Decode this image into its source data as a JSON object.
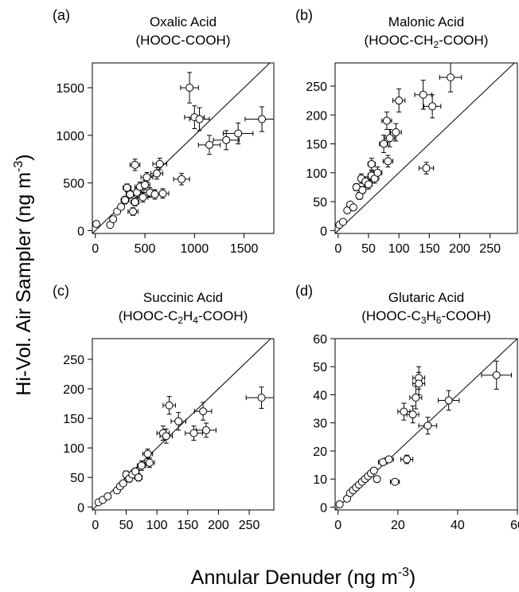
{
  "figure": {
    "ylabel": "Hi-Vol. Air Sampler (ng m",
    "ylabel_sup": "-3",
    "ylabel_close": ")",
    "xlabel": "Annular Denuder (ng m",
    "xlabel_sup": "-3",
    "xlabel_close": ")"
  },
  "chart_data": [
    {
      "type": "scatter",
      "panel_label": "(a)",
      "title_line1": "Oxalic Acid",
      "title_line2": [
        {
          "t": "(HOOC-COOH)"
        }
      ],
      "xlim": [
        -30,
        1800
      ],
      "ylim": [
        -30,
        1760
      ],
      "xticks": [
        0,
        500,
        1000,
        1500
      ],
      "yticks": [
        0,
        500,
        1000,
        1500
      ],
      "one_to_one_line": true,
      "points": [
        {
          "x": 10,
          "y": 70
        },
        {
          "x": 150,
          "y": 60
        },
        {
          "x": 180,
          "y": 120
        },
        {
          "x": 220,
          "y": 200
        },
        {
          "x": 260,
          "y": 250
        },
        {
          "x": 300,
          "y": 320
        },
        {
          "x": 320,
          "y": 450
        },
        {
          "x": 350,
          "y": 380
        },
        {
          "x": 380,
          "y": 200
        },
        {
          "x": 400,
          "y": 300
        },
        {
          "x": 420,
          "y": 400
        },
        {
          "x": 450,
          "y": 460
        },
        {
          "x": 480,
          "y": 350
        },
        {
          "x": 500,
          "y": 480
        },
        {
          "x": 520,
          "y": 560
        },
        {
          "x": 550,
          "y": 400
        },
        {
          "x": 600,
          "y": 380
        },
        {
          "x": 620,
          "y": 600
        },
        {
          "x": 650,
          "y": 700
        },
        {
          "x": 680,
          "y": 390
        },
        {
          "x": 400,
          "y": 690
        },
        {
          "x": 870,
          "y": 540
        },
        {
          "x": 950,
          "y": 1500
        },
        {
          "x": 1000,
          "y": 1190
        },
        {
          "x": 1050,
          "y": 1170
        },
        {
          "x": 1150,
          "y": 900
        },
        {
          "x": 1320,
          "y": 950
        },
        {
          "x": 1440,
          "y": 1020
        },
        {
          "x": 1680,
          "y": 1170
        }
      ],
      "x_errors": [
        0,
        0,
        0,
        0,
        0,
        40,
        40,
        40,
        50,
        40,
        50,
        50,
        50,
        50,
        60,
        60,
        60,
        60,
        70,
        60,
        50,
        80,
        90,
        100,
        100,
        110,
        130,
        150,
        170
      ],
      "y_errors": [
        0,
        0,
        0,
        0,
        0,
        40,
        40,
        40,
        40,
        40,
        50,
        50,
        50,
        50,
        50,
        50,
        50,
        60,
        60,
        50,
        60,
        60,
        160,
        120,
        120,
        100,
        100,
        110,
        130
      ]
    },
    {
      "type": "scatter",
      "panel_label": "(b)",
      "title_line1": "Malonic Acid",
      "title_line2": [
        {
          "t": "(HOOC-CH"
        },
        {
          "t": "2",
          "sub": true
        },
        {
          "t": "-COOH)"
        }
      ],
      "xlim": [
        -5,
        295
      ],
      "ylim": [
        -5,
        290
      ],
      "xticks": [
        0,
        50,
        100,
        150,
        200,
        250
      ],
      "yticks": [
        0,
        50,
        100,
        150,
        200,
        250
      ],
      "one_to_one_line": true,
      "points": [
        {
          "x": 2,
          "y": 10
        },
        {
          "x": 8,
          "y": 15
        },
        {
          "x": 15,
          "y": 35
        },
        {
          "x": 20,
          "y": 45
        },
        {
          "x": 25,
          "y": 40
        },
        {
          "x": 30,
          "y": 75
        },
        {
          "x": 35,
          "y": 60
        },
        {
          "x": 38,
          "y": 90
        },
        {
          "x": 40,
          "y": 70
        },
        {
          "x": 45,
          "y": 85
        },
        {
          "x": 50,
          "y": 80
        },
        {
          "x": 55,
          "y": 115
        },
        {
          "x": 55,
          "y": 95
        },
        {
          "x": 60,
          "y": 90
        },
        {
          "x": 65,
          "y": 100
        },
        {
          "x": 75,
          "y": 150
        },
        {
          "x": 80,
          "y": 190
        },
        {
          "x": 82,
          "y": 120
        },
        {
          "x": 85,
          "y": 160
        },
        {
          "x": 95,
          "y": 170
        },
        {
          "x": 100,
          "y": 225
        },
        {
          "x": 140,
          "y": 235
        },
        {
          "x": 145,
          "y": 108
        },
        {
          "x": 155,
          "y": 215
        },
        {
          "x": 185,
          "y": 265
        }
      ],
      "x_errors": [
        0,
        0,
        0,
        4,
        4,
        5,
        5,
        5,
        5,
        6,
        6,
        6,
        6,
        6,
        7,
        7,
        8,
        8,
        8,
        9,
        10,
        14,
        12,
        14,
        18
      ],
      "y_errors": [
        0,
        0,
        0,
        4,
        4,
        6,
        6,
        8,
        6,
        8,
        8,
        10,
        8,
        8,
        10,
        15,
        15,
        10,
        15,
        15,
        20,
        25,
        10,
        20,
        25
      ]
    },
    {
      "type": "scatter",
      "panel_label": "(c)",
      "title_line1": "Succinic Acid",
      "title_line2": [
        {
          "t": "(HOOC-C"
        },
        {
          "t": "2",
          "sub": true
        },
        {
          "t": "H"
        },
        {
          "t": "4",
          "sub": true
        },
        {
          "t": "-COOH)"
        }
      ],
      "xlim": [
        -5,
        290
      ],
      "ylim": [
        -5,
        285
      ],
      "xticks": [
        0,
        50,
        100,
        150,
        200,
        250
      ],
      "yticks": [
        0,
        50,
        100,
        150,
        200,
        250
      ],
      "one_to_one_line": true,
      "points": [
        {
          "x": 5,
          "y": 8
        },
        {
          "x": 12,
          "y": 12
        },
        {
          "x": 20,
          "y": 18
        },
        {
          "x": 35,
          "y": 28
        },
        {
          "x": 40,
          "y": 35
        },
        {
          "x": 45,
          "y": 40
        },
        {
          "x": 50,
          "y": 55
        },
        {
          "x": 55,
          "y": 48
        },
        {
          "x": 60,
          "y": 55
        },
        {
          "x": 65,
          "y": 60
        },
        {
          "x": 70,
          "y": 50
        },
        {
          "x": 75,
          "y": 70
        },
        {
          "x": 85,
          "y": 90
        },
        {
          "x": 88,
          "y": 75
        },
        {
          "x": 110,
          "y": 125
        },
        {
          "x": 115,
          "y": 120
        },
        {
          "x": 120,
          "y": 172
        },
        {
          "x": 135,
          "y": 145
        },
        {
          "x": 160,
          "y": 125
        },
        {
          "x": 175,
          "y": 162
        },
        {
          "x": 180,
          "y": 130
        },
        {
          "x": 270,
          "y": 185
        }
      ],
      "x_errors": [
        0,
        0,
        0,
        4,
        4,
        5,
        5,
        5,
        6,
        6,
        6,
        7,
        8,
        8,
        10,
        10,
        10,
        12,
        14,
        14,
        16,
        25
      ],
      "y_errors": [
        0,
        0,
        0,
        4,
        4,
        4,
        6,
        6,
        6,
        6,
        6,
        8,
        8,
        8,
        12,
        12,
        15,
        15,
        12,
        15,
        12,
        18
      ]
    },
    {
      "type": "scatter",
      "panel_label": "(d)",
      "title_line1": "Glutaric Acid",
      "title_line2": [
        {
          "t": "(HOOC-C"
        },
        {
          "t": "3",
          "sub": true
        },
        {
          "t": "H"
        },
        {
          "t": "6",
          "sub": true
        },
        {
          "t": "-COOH)"
        }
      ],
      "xlim": [
        -1,
        60
      ],
      "ylim": [
        -1,
        60
      ],
      "xticks": [
        0,
        20,
        40,
        60
      ],
      "yticks": [
        0,
        10,
        20,
        30,
        40,
        50,
        60
      ],
      "one_to_one_line": true,
      "points": [
        {
          "x": 0.5,
          "y": 1
        },
        {
          "x": 3,
          "y": 3
        },
        {
          "x": 4,
          "y": 5
        },
        {
          "x": 5,
          "y": 6
        },
        {
          "x": 6,
          "y": 7
        },
        {
          "x": 7,
          "y": 8
        },
        {
          "x": 8,
          "y": 9
        },
        {
          "x": 9,
          "y": 10
        },
        {
          "x": 10,
          "y": 11
        },
        {
          "x": 11,
          "y": 12
        },
        {
          "x": 12,
          "y": 13
        },
        {
          "x": 13,
          "y": 10
        },
        {
          "x": 15,
          "y": 16
        },
        {
          "x": 17,
          "y": 17
        },
        {
          "x": 19,
          "y": 9
        },
        {
          "x": 22,
          "y": 34
        },
        {
          "x": 23,
          "y": 17
        },
        {
          "x": 25,
          "y": 33
        },
        {
          "x": 26,
          "y": 39
        },
        {
          "x": 27,
          "y": 46
        },
        {
          "x": 27,
          "y": 44
        },
        {
          "x": 30,
          "y": 29
        },
        {
          "x": 37,
          "y": 38
        },
        {
          "x": 53,
          "y": 47
        }
      ],
      "x_errors": [
        0,
        0,
        0,
        0,
        0,
        0,
        1,
        1,
        1,
        1,
        1,
        1,
        1.5,
        1.5,
        1.5,
        2,
        2,
        2,
        2,
        2,
        2,
        3,
        3.5,
        5
      ],
      "y_errors": [
        0,
        0,
        0,
        0,
        0,
        0,
        0.5,
        0.5,
        0.5,
        0.5,
        0.5,
        0.5,
        1,
        1,
        1,
        3,
        1.5,
        3,
        4,
        4,
        4,
        3,
        3.5,
        5
      ]
    }
  ]
}
